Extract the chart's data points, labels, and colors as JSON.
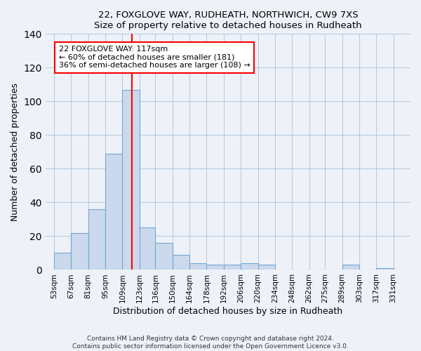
{
  "title1": "22, FOXGLOVE WAY, RUDHEATH, NORTHWICH, CW9 7XS",
  "title2": "Size of property relative to detached houses in Rudheath",
  "xlabel": "Distribution of detached houses by size in Rudheath",
  "ylabel": "Number of detached properties",
  "bar_left_edges": [
    53,
    67,
    81,
    95,
    109,
    123,
    136,
    150,
    164,
    178,
    192,
    206,
    220,
    234,
    248,
    262,
    275,
    289,
    303,
    317
  ],
  "bar_widths": [
    14,
    14,
    14,
    14,
    14,
    13,
    14,
    14,
    14,
    14,
    14,
    14,
    14,
    14,
    14,
    13,
    14,
    14,
    14,
    14
  ],
  "bar_heights": [
    10,
    22,
    36,
    69,
    107,
    25,
    16,
    9,
    4,
    3,
    3,
    4,
    3,
    0,
    0,
    0,
    0,
    3,
    0,
    1
  ],
  "tick_labels": [
    "53sqm",
    "67sqm",
    "81sqm",
    "95sqm",
    "109sqm",
    "123sqm",
    "136sqm",
    "150sqm",
    "164sqm",
    "178sqm",
    "192sqm",
    "206sqm",
    "220sqm",
    "234sqm",
    "248sqm",
    "262sqm",
    "275sqm",
    "289sqm",
    "303sqm",
    "317sqm",
    "331sqm"
  ],
  "tick_positions": [
    53,
    67,
    81,
    95,
    109,
    123,
    136,
    150,
    164,
    178,
    192,
    206,
    220,
    234,
    248,
    262,
    275,
    289,
    303,
    317,
    331
  ],
  "bar_color": "#ccd9ec",
  "bar_edge_color": "#6fa8d6",
  "vline_x": 117,
  "vline_color": "red",
  "ylim": [
    0,
    140
  ],
  "xlim": [
    46,
    345
  ],
  "yticks": [
    0,
    20,
    40,
    60,
    80,
    100,
    120,
    140
  ],
  "annotation_text": "22 FOXGLOVE WAY: 117sqm\n← 60% of detached houses are smaller (181)\n36% of semi-detached houses are larger (108) →",
  "annotation_box_color": "white",
  "annotation_box_edgecolor": "red",
  "footer1": "Contains HM Land Registry data © Crown copyright and database right 2024.",
  "footer2": "Contains public sector information licensed under the Open Government Licence v3.0.",
  "bg_color": "#eef2f8",
  "plot_bg_color": "#eef2f8",
  "grid_color": "#b8cce0"
}
